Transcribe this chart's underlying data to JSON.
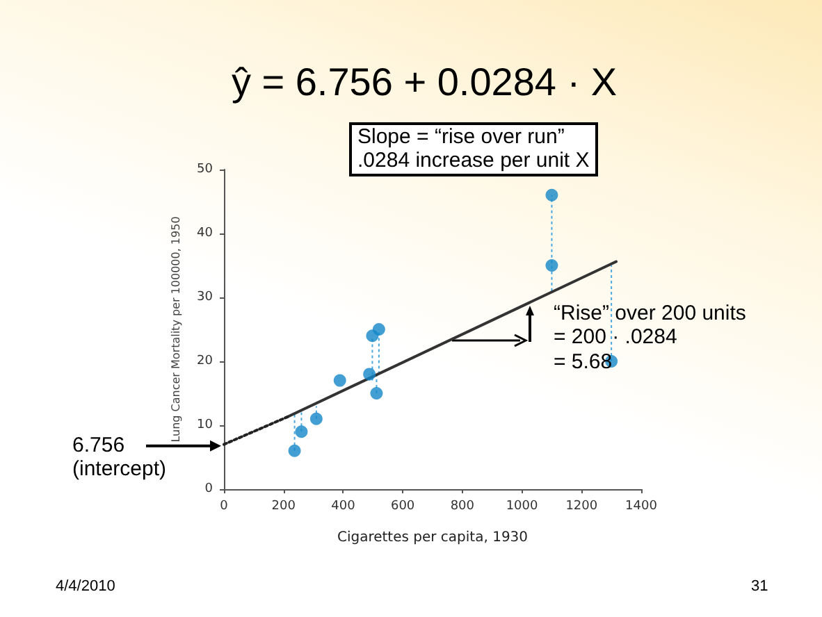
{
  "chart_data": {
    "type": "scatter",
    "title": "ŷ = 6.756 + 0.0284 · X",
    "xlabel": "Cigarettes per capita, 1930",
    "ylabel": "Lung Cancer Mortality per 100000, 1950",
    "xlim": [
      0,
      1400
    ],
    "xticks": [
      0,
      200,
      400,
      600,
      800,
      1000,
      1200,
      1400
    ],
    "ylim": [
      0,
      50
    ],
    "yticks": [
      0,
      10,
      20,
      30,
      40,
      50
    ],
    "marker": "circle",
    "series": [
      {
        "color": "#1487c8",
        "x": [
          237,
          260,
          310,
          389,
          488,
          498,
          520,
          512,
          1100,
          1100,
          1300
        ],
        "values": [
          6,
          9,
          11,
          17,
          18,
          24,
          25,
          15,
          35,
          46,
          20
        ],
        "errors": [
          [
            6,
            12
          ],
          [
            9,
            12
          ],
          [
            11,
            13
          ],
          null,
          [
            17,
            18
          ],
          [
            17,
            24
          ],
          [
            18,
            25
          ],
          [
            15,
            18
          ],
          null,
          [
            31,
            46
          ],
          [
            20,
            35
          ]
        ]
      },
      {
        "type": "line",
        "color": "#333333",
        "line_style": "solid",
        "marker": "none",
        "x": [
          213,
          1316
        ],
        "values": [
          11.3,
          35.6
        ]
      },
      {
        "type": "line",
        "color": "#222222",
        "line_style": "dotted",
        "marker": "none",
        "x": [
          0,
          213
        ],
        "values": [
          7,
          11.3
        ]
      }
    ],
    "annotations": [
      "Slope = “rise over run”\n.0284 increase per unit X",
      "“Rise” over 200 units\n= 200 · .0284\n= 5.68",
      {
        "text": "6.756\n(intercept)",
        "x": 0,
        "y": 6.756
      },
      "4/4/2010",
      "31"
    ]
  }
}
